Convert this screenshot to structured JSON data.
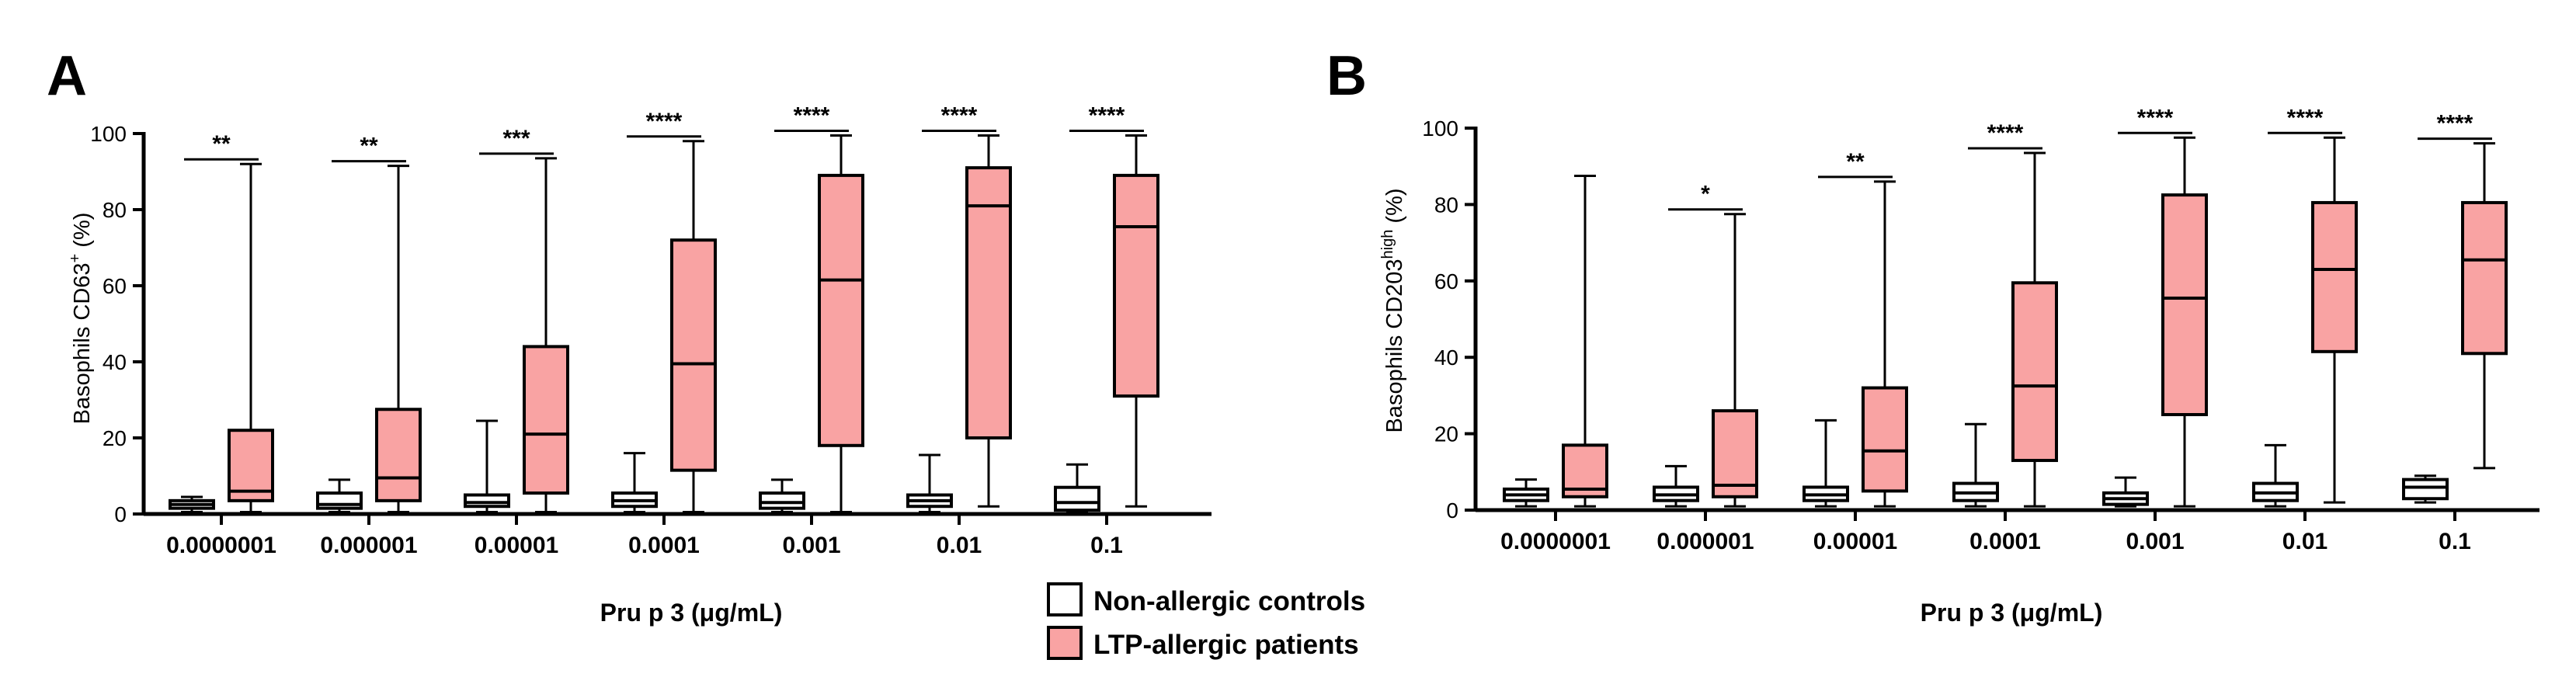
{
  "chart_data": [
    {
      "type": "boxplot",
      "panel": "A",
      "ylabel": "Basophils CD63⁺ (%)",
      "ylabel_main": "Basophils CD63",
      "ylabel_sup": "+",
      "ylabel_tail": " (%)",
      "xlabel": "Pru p 3 (μg/mL)",
      "ylim": [
        0,
        100
      ],
      "yticks": [
        "0",
        "20",
        "40",
        "60",
        "80",
        "100"
      ],
      "categories": [
        "0.0000001",
        "0.000001",
        "0.00001",
        "0.0001",
        "0.001",
        "0.01",
        "0.1"
      ],
      "series": [
        {
          "name": "Non-allergic controls",
          "color": "#ffffff",
          "boxes": [
            {
              "min": 0.5,
              "q1": 1.5,
              "median": 2.5,
              "q3": 3.5,
              "max": 4.5
            },
            {
              "min": 0.5,
              "q1": 1.5,
              "median": 2.5,
              "q3": 5.5,
              "max": 9
            },
            {
              "min": 0.5,
              "q1": 2,
              "median": 3,
              "q3": 5,
              "max": 24.5
            },
            {
              "min": 0.5,
              "q1": 2,
              "median": 3.5,
              "q3": 5.5,
              "max": 16
            },
            {
              "min": 0.5,
              "q1": 1.5,
              "median": 3,
              "q3": 5.5,
              "max": 9
            },
            {
              "min": 0.5,
              "q1": 2,
              "median": 3.5,
              "q3": 5,
              "max": 15.5
            },
            {
              "min": 0.5,
              "q1": 1,
              "median": 3,
              "q3": 7,
              "max": 13
            }
          ]
        },
        {
          "name": "LTP-allergic patients",
          "color": "#f9a3a3",
          "boxes": [
            {
              "min": 0.5,
              "q1": 3.5,
              "median": 6,
              "q3": 22,
              "max": 92
            },
            {
              "min": 0.5,
              "q1": 3.5,
              "median": 9.5,
              "q3": 27.5,
              "max": 91.5
            },
            {
              "min": 0.5,
              "q1": 5.5,
              "median": 21,
              "q3": 44,
              "max": 93.5
            },
            {
              "min": 0.5,
              "q1": 11.5,
              "median": 39.5,
              "q3": 72,
              "max": 98
            },
            {
              "min": 0.5,
              "q1": 18,
              "median": 61.5,
              "q3": 89,
              "max": 99.5
            },
            {
              "min": 2,
              "q1": 20,
              "median": 81,
              "q3": 91,
              "max": 99.5
            },
            {
              "min": 2,
              "q1": 31,
              "median": 75.5,
              "q3": 89,
              "max": 99.5
            }
          ]
        }
      ],
      "significance": [
        "**",
        "**",
        "***",
        "****",
        "****",
        "****",
        "****"
      ]
    },
    {
      "type": "boxplot",
      "panel": "B",
      "ylabel": "Basophils CD203ʰⁱᵍʰ (%)",
      "ylabel_main": "Basophils CD203",
      "ylabel_sup": "high",
      "ylabel_tail": " (%)",
      "xlabel": "Pru p 3 (μg/mL)",
      "ylim": [
        0,
        100
      ],
      "yticks": [
        "0",
        "20",
        "40",
        "60",
        "80",
        "100"
      ],
      "categories": [
        "0.0000001",
        "0.000001",
        "0.00001",
        "0.0001",
        "0.001",
        "0.01",
        "0.1"
      ],
      "series": [
        {
          "name": "Non-allergic controls",
          "color": "#ffffff",
          "boxes": [
            {
              "min": 1,
              "q1": 2.5,
              "median": 4,
              "q3": 5.5,
              "max": 8
            },
            {
              "min": 1,
              "q1": 2.5,
              "median": 4,
              "q3": 6,
              "max": 11.5
            },
            {
              "min": 1,
              "q1": 2.5,
              "median": 4,
              "q3": 6,
              "max": 23.5
            },
            {
              "min": 1,
              "q1": 2.5,
              "median": 4.5,
              "q3": 7,
              "max": 22.5
            },
            {
              "min": 1,
              "q1": 1.5,
              "median": 3,
              "q3": 4.5,
              "max": 8.5
            },
            {
              "min": 1,
              "q1": 2.5,
              "median": 4.5,
              "q3": 7,
              "max": 17
            },
            {
              "min": 2,
              "q1": 3,
              "median": 6,
              "q3": 8,
              "max": 9
            }
          ]
        },
        {
          "name": "LTP-allergic patients",
          "color": "#f9a3a3",
          "boxes": [
            {
              "min": 1,
              "q1": 3.5,
              "median": 5.5,
              "q3": 17,
              "max": 87.5
            },
            {
              "min": 1,
              "q1": 3.5,
              "median": 6.5,
              "q3": 26,
              "max": 77.5
            },
            {
              "min": 1,
              "q1": 5,
              "median": 15.5,
              "q3": 32,
              "max": 86
            },
            {
              "min": 1,
              "q1": 13,
              "median": 32.5,
              "q3": 59.5,
              "max": 93.5
            },
            {
              "min": 1,
              "q1": 25,
              "median": 55.5,
              "q3": 82.5,
              "max": 97.5
            },
            {
              "min": 2,
              "q1": 41.5,
              "median": 63,
              "q3": 80.5,
              "max": 97.5
            },
            {
              "min": 11,
              "q1": 41,
              "median": 65.5,
              "q3": 80.5,
              "max": 96
            }
          ]
        }
      ],
      "significance": [
        "",
        "*",
        "**",
        "****",
        "****",
        "****",
        "****"
      ]
    }
  ],
  "legend": {
    "items": [
      {
        "label": "Non-allergic controls",
        "color": "#ffffff"
      },
      {
        "label": "LTP-allergic patients",
        "color": "#f9a3a3"
      }
    ]
  }
}
